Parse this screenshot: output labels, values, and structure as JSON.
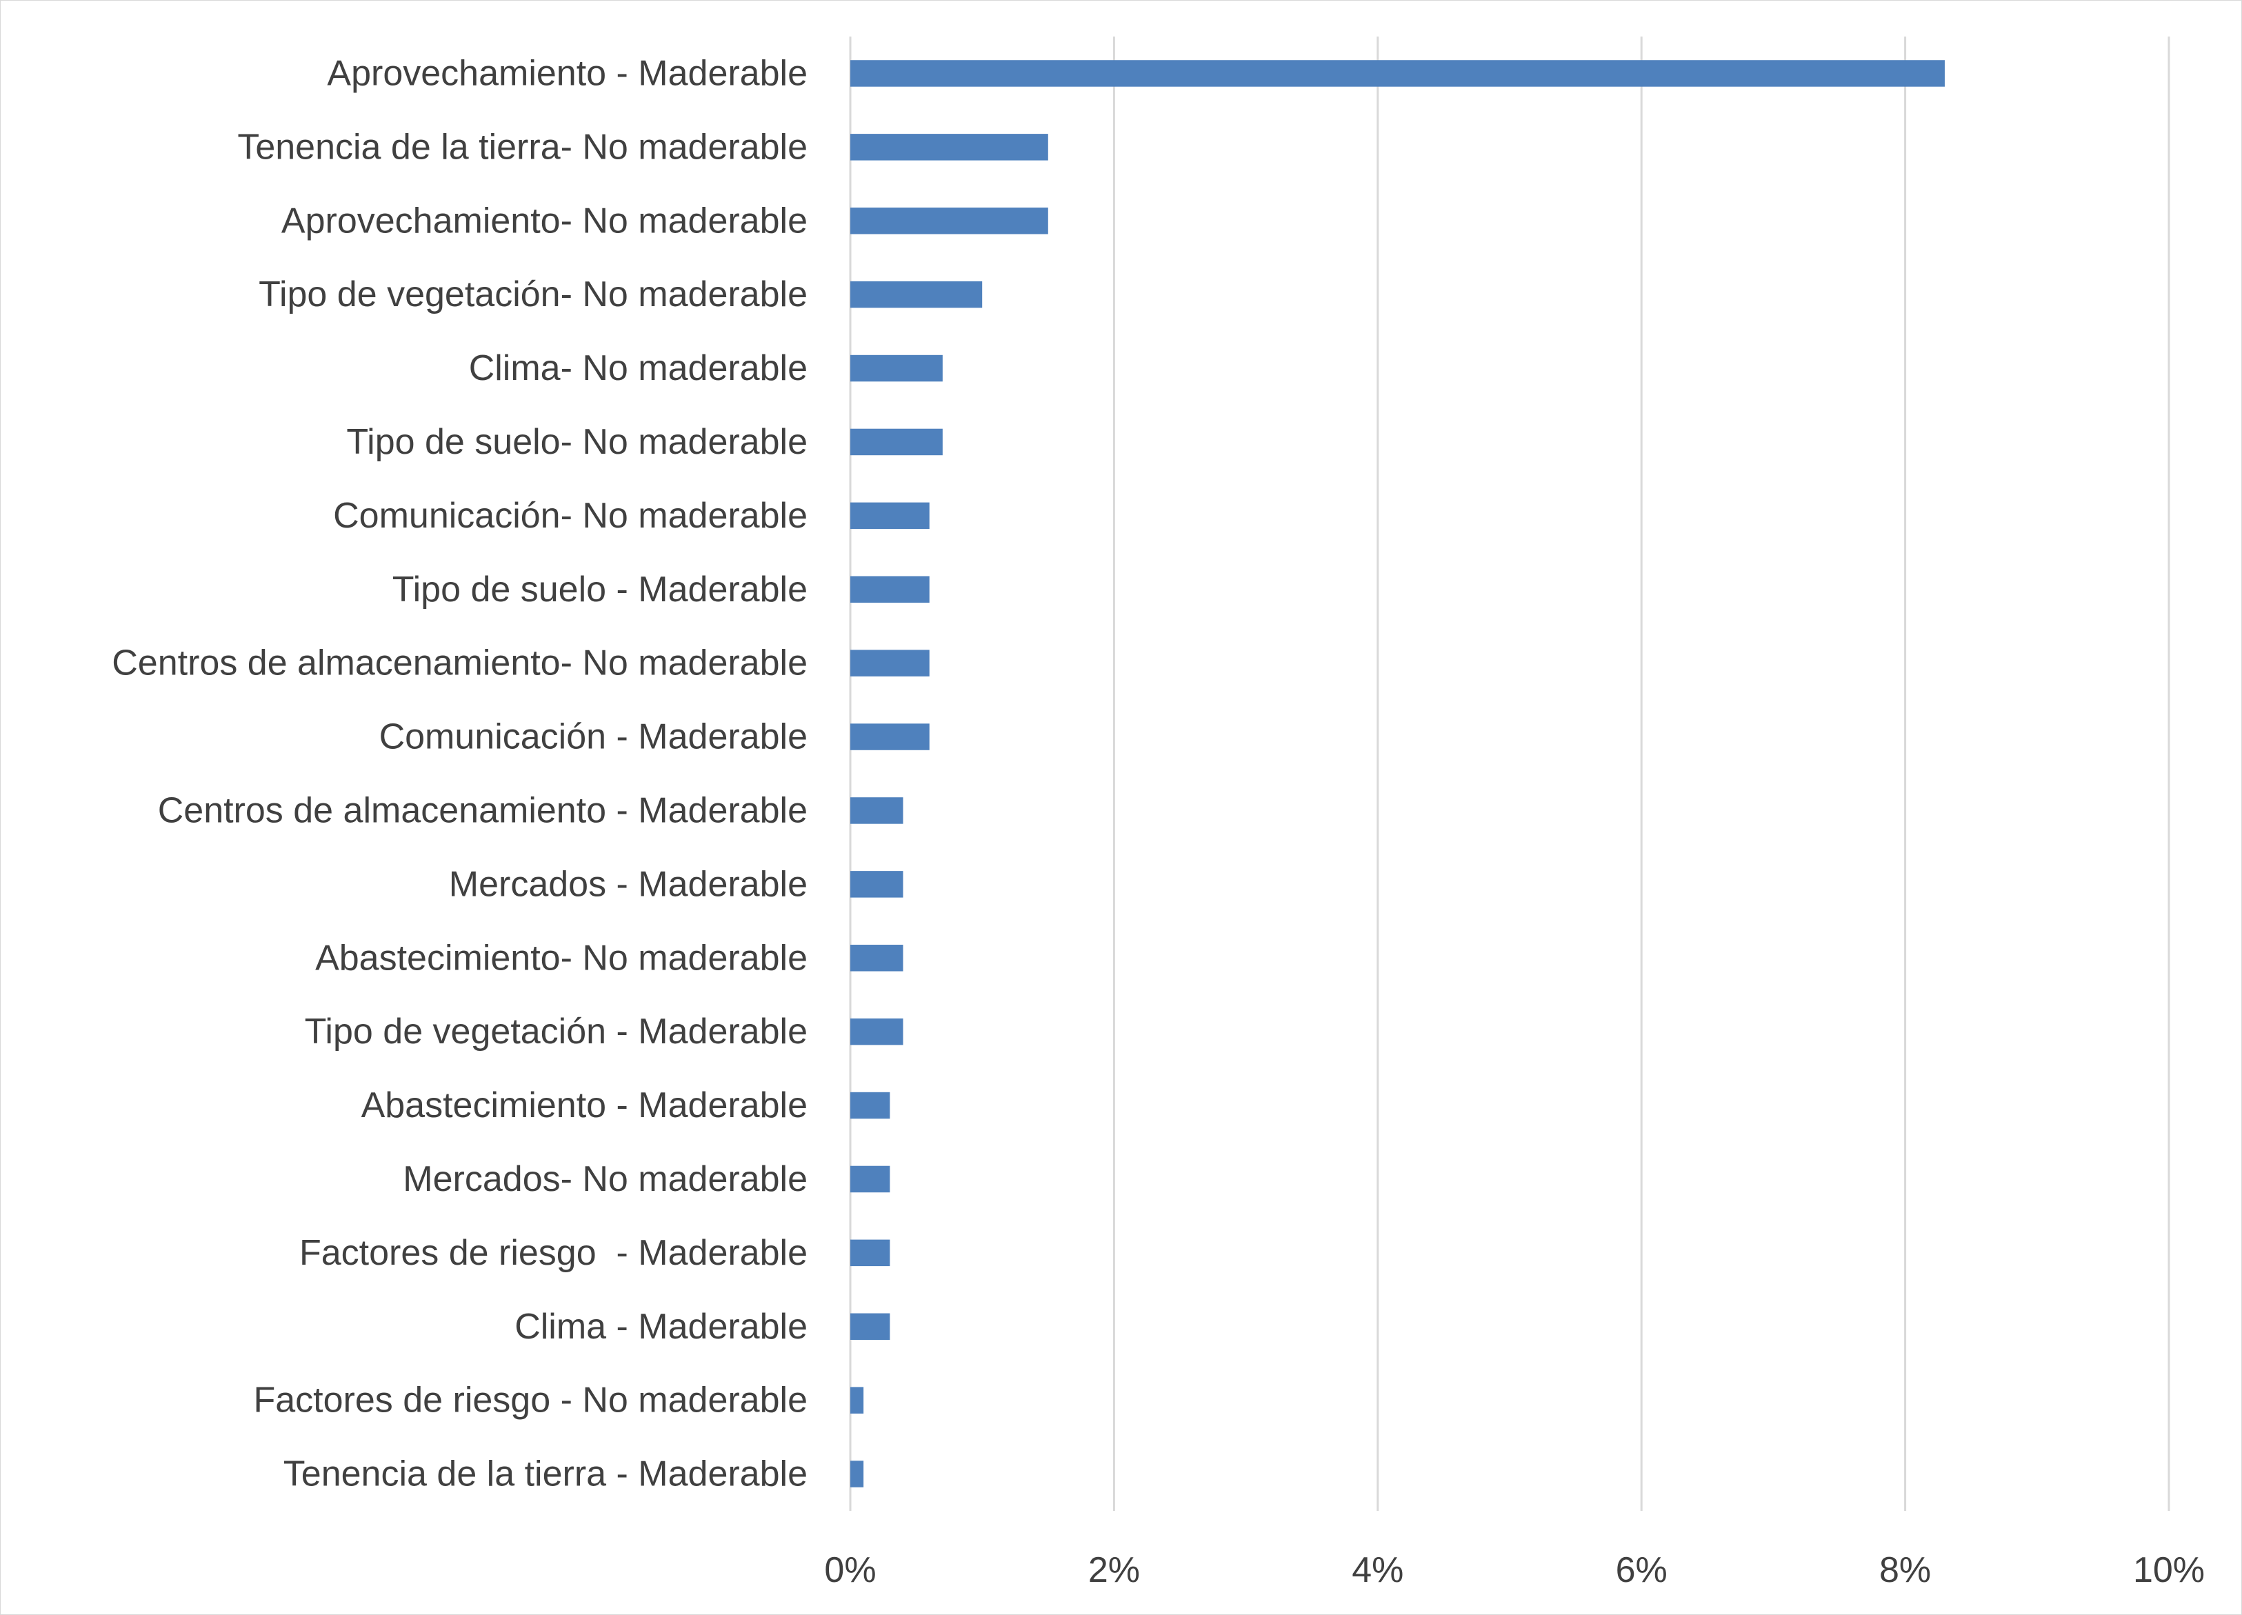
{
  "chart_data": {
    "type": "bar",
    "orientation": "horizontal",
    "title": "",
    "xlabel": "",
    "ylabel": "",
    "categories": [
      "Aprovechamiento - Maderable",
      "Tenencia de la tierra- No maderable",
      "Aprovechamiento- No maderable",
      "Tipo de vegetación- No maderable",
      "Clima- No maderable",
      "Tipo de suelo- No maderable",
      "Comunicación- No maderable",
      "Tipo de suelo - Maderable",
      "Centros de almacenamiento- No maderable",
      "Comunicación - Maderable",
      "Centros de almacenamiento - Maderable",
      "Mercados - Maderable",
      "Abastecimiento- No maderable",
      "Tipo de vegetación - Maderable",
      "Abastecimiento - Maderable",
      "Mercados- No maderable",
      "Factores de riesgo  - Maderable",
      "Clima - Maderable",
      "Factores de riesgo - No maderable",
      "Tenencia de la tierra - Maderable"
    ],
    "values": [
      8.3,
      1.5,
      1.5,
      1.0,
      0.7,
      0.7,
      0.6,
      0.6,
      0.6,
      0.6,
      0.4,
      0.4,
      0.4,
      0.4,
      0.3,
      0.3,
      0.3,
      0.3,
      0.1,
      0.1
    ],
    "value_unit": "%",
    "xlim": [
      0,
      10
    ],
    "x_ticks": [
      "0%",
      "2%",
      "4%",
      "6%",
      "8%",
      "10%"
    ],
    "grid": "vertical",
    "legend": "none",
    "bar_color": "#4f81bd",
    "grid_color": "#d9d9d9",
    "text_color": "#404040"
  }
}
